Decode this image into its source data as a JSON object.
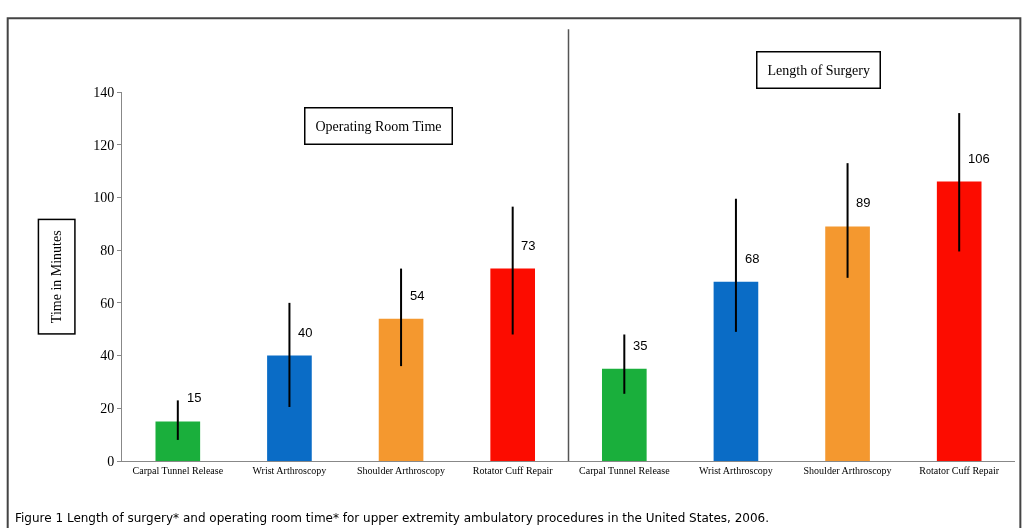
{
  "chart_data": {
    "type": "bar",
    "ylabel": "Time in Minutes",
    "categories": [
      "Carpal Tunnel Release",
      "Wrist Arthroscopy",
      "Shoulder Arthroscopy",
      "Rotator Cuff Repair",
      "Carpal Tunnel Release",
      "Wrist Arthroscopy",
      "Shoulder Arthroscopy",
      "Rotator Cuff Repair"
    ],
    "values": [
      15,
      40,
      54,
      73,
      35,
      68,
      89,
      106
    ],
    "colors": [
      "#1aaf3c",
      "#0a6cc6",
      "#f4982f",
      "#fc0c00",
      "#1aaf3c",
      "#0a6cc6",
      "#f4982f",
      "#fc0c00"
    ],
    "errors": [
      [
        8,
        23
      ],
      [
        20.5,
        60
      ],
      [
        36,
        73
      ],
      [
        48,
        96.5
      ],
      [
        25.5,
        48
      ],
      [
        49,
        99.5
      ],
      [
        69.5,
        113
      ],
      [
        79.5,
        132
      ]
    ],
    "data_labels": true,
    "ylim": [
      0,
      140
    ],
    "yticks": [
      0,
      20,
      40,
      60,
      80,
      100,
      120,
      140
    ],
    "annotations": [
      "Operating Room Time",
      "Length of Surgery",
      "Figure 1 Length of surgery* and operating room time* for upper extremity ambulatory procedures in the United States, 2006."
    ]
  }
}
